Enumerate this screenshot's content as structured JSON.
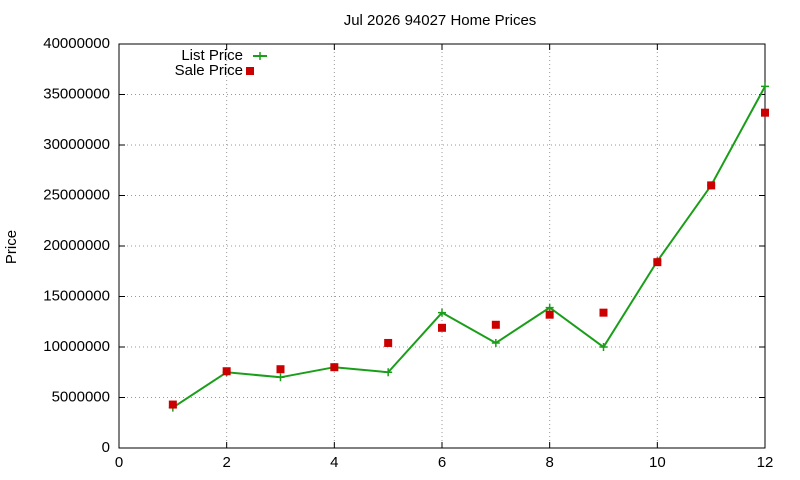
{
  "chart_data": {
    "type": "line",
    "title": "Jul 2026 94027 Home Prices",
    "y_label": "Price",
    "x": [
      1,
      2,
      3,
      4,
      5,
      6,
      7,
      8,
      9,
      10,
      11,
      12
    ],
    "series": [
      {
        "name": "List Price",
        "color": "#1a9e1a",
        "style": "line-points",
        "values": [
          4000000,
          7500000,
          7000000,
          8000000,
          7500000,
          13400000,
          10400000,
          13900000,
          10000000,
          18500000,
          26000000,
          35800000
        ]
      },
      {
        "name": "Sale Price",
        "color": "#cc0000",
        "style": "points",
        "values": [
          4300000,
          7600000,
          7800000,
          8000000,
          10400000,
          11900000,
          12200000,
          13200000,
          13400000,
          18400000,
          26000000,
          33200000
        ]
      }
    ],
    "xlim": [
      0,
      12
    ],
    "xticks": [
      0,
      2,
      4,
      6,
      8,
      10,
      12
    ],
    "ylim": [
      0,
      40000000
    ],
    "yticks": [
      0,
      5000000,
      10000000,
      15000000,
      20000000,
      25000000,
      30000000,
      35000000,
      40000000
    ],
    "grid": true,
    "legend": "top-left"
  }
}
